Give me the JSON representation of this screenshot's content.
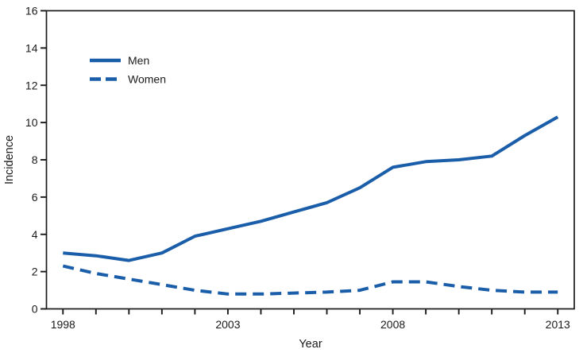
{
  "chart_data": {
    "type": "line",
    "title": "",
    "xlabel": "Year",
    "ylabel": "Incidence",
    "x": [
      1998,
      1999,
      2000,
      2001,
      2002,
      2003,
      2004,
      2005,
      2006,
      2007,
      2008,
      2009,
      2010,
      2011,
      2012,
      2013
    ],
    "series": [
      {
        "name": "Men",
        "line_style": "solid",
        "values": [
          3.0,
          2.85,
          2.6,
          3.0,
          3.9,
          4.3,
          4.7,
          5.2,
          5.7,
          6.5,
          7.6,
          7.9,
          8.0,
          8.2,
          9.3,
          10.3
        ]
      },
      {
        "name": "Women",
        "line_style": "dashed",
        "values": [
          2.3,
          1.9,
          1.6,
          1.3,
          1.0,
          0.8,
          0.8,
          0.85,
          0.9,
          1.0,
          1.45,
          1.45,
          1.2,
          1.0,
          0.9,
          0.9
        ]
      }
    ],
    "xlim": [
      1997.5,
      2013.5
    ],
    "ylim": [
      0,
      16
    ],
    "y_ticks": [
      0,
      2,
      4,
      6,
      8,
      10,
      12,
      14,
      16
    ],
    "x_tick_labels": [
      1998,
      2003,
      2008,
      2013
    ],
    "x_minor_ticks_every_year": true,
    "grid": false,
    "legend_position": "upper-left-inside",
    "line_color": "#1a5da8"
  }
}
